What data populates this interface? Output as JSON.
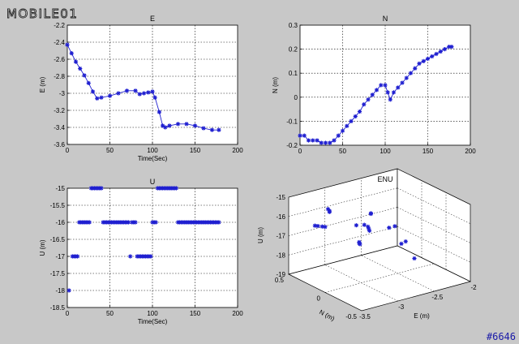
{
  "brand": {
    "logo_text": "MOBILE01"
  },
  "watermark": "#6646",
  "colors": {
    "figure_bg": "#c8c8c8",
    "axes_bg": "#ffffff",
    "marker": "#1f1fd0",
    "grid": "#000000"
  },
  "chart_data": [
    {
      "type": "line",
      "title": "E",
      "xlabel": "Time(Sec)",
      "ylabel": "E (m)",
      "xlim": [
        0,
        200
      ],
      "ylim": [
        -3.6,
        -2.2
      ],
      "xticks": [
        0,
        50,
        100,
        150,
        200
      ],
      "yticks": [
        -3.6,
        -3.4,
        -3.2,
        -3.0,
        -2.8,
        -2.6,
        -2.4,
        -2.2
      ],
      "ytick_labels": [
        "-3.6",
        "-3.4",
        "-3.2",
        "-3",
        "-2.8",
        "-2.6",
        "-2.4",
        "-2.2"
      ],
      "grid": true,
      "marker": "*",
      "x": [
        0,
        5,
        10,
        15,
        20,
        25,
        30,
        35,
        40,
        50,
        60,
        70,
        80,
        85,
        90,
        95,
        100,
        103,
        108,
        112,
        115,
        120,
        130,
        140,
        150,
        160,
        170,
        178
      ],
      "y": [
        -2.43,
        -2.53,
        -2.63,
        -2.71,
        -2.79,
        -2.88,
        -2.98,
        -3.06,
        -3.05,
        -3.03,
        -3.0,
        -2.97,
        -2.97,
        -3.01,
        -3.0,
        -2.99,
        -2.98,
        -3.05,
        -3.22,
        -3.38,
        -3.4,
        -3.38,
        -3.36,
        -3.36,
        -3.38,
        -3.41,
        -3.43,
        -3.43
      ]
    },
    {
      "type": "line",
      "title": "N",
      "xlabel": "",
      "ylabel": "N (m)",
      "xlim": [
        0,
        200
      ],
      "ylim": [
        -0.2,
        0.3
      ],
      "xticks": [
        0,
        50,
        100,
        150,
        200
      ],
      "yticks": [
        -0.2,
        -0.1,
        0,
        0.1,
        0.2,
        0.3
      ],
      "ytick_labels": [
        "-0.2",
        "-0.1",
        "0",
        "0.1",
        "0.2",
        "0.3"
      ],
      "grid": true,
      "marker": "*",
      "x": [
        0,
        5,
        10,
        15,
        20,
        25,
        30,
        35,
        40,
        45,
        50,
        55,
        60,
        65,
        70,
        75,
        80,
        85,
        90,
        95,
        100,
        103,
        106,
        110,
        115,
        120,
        125,
        130,
        135,
        140,
        145,
        150,
        155,
        160,
        165,
        170,
        175,
        178
      ],
      "y": [
        -0.16,
        -0.16,
        -0.18,
        -0.18,
        -0.18,
        -0.19,
        -0.19,
        -0.19,
        -0.18,
        -0.16,
        -0.14,
        -0.12,
        -0.1,
        -0.08,
        -0.06,
        -0.03,
        -0.01,
        0.01,
        0.03,
        0.05,
        0.05,
        0.02,
        -0.01,
        0.02,
        0.04,
        0.06,
        0.08,
        0.1,
        0.12,
        0.14,
        0.15,
        0.16,
        0.17,
        0.18,
        0.19,
        0.2,
        0.21,
        0.21
      ]
    },
    {
      "type": "scatter",
      "title": "U",
      "xlabel": "Time(Sec)",
      "ylabel": "U (m)",
      "xlim": [
        0,
        200
      ],
      "ylim": [
        -18.5,
        -15
      ],
      "xticks": [
        0,
        50,
        100,
        150,
        200
      ],
      "yticks": [
        -18.5,
        -18,
        -17.5,
        -17,
        -16.5,
        -16,
        -15.5,
        -15
      ],
      "ytick_labels": [
        "-18.5",
        "-18",
        "-17.5",
        "-17",
        "-16.5",
        "-16",
        "-15.5",
        "-15"
      ],
      "grid": true,
      "marker": "*",
      "x": [
        2,
        6,
        8,
        10,
        12,
        14,
        16,
        18,
        20,
        22,
        24,
        26,
        28,
        30,
        32,
        34,
        36,
        38,
        40,
        42,
        44,
        46,
        48,
        50,
        52,
        54,
        56,
        58,
        60,
        62,
        64,
        66,
        68,
        70,
        72,
        74,
        76,
        78,
        80,
        82,
        84,
        86,
        88,
        90,
        92,
        94,
        96,
        98,
        100,
        102,
        104,
        106,
        108,
        110,
        112,
        114,
        116,
        118,
        120,
        122,
        124,
        126,
        128,
        130,
        132,
        134,
        136,
        138,
        140,
        142,
        144,
        146,
        148,
        150,
        152,
        154,
        156,
        158,
        160,
        162,
        164,
        166,
        168,
        170,
        172,
        174,
        176,
        178
      ],
      "y": [
        -18,
        -17,
        -17,
        -17,
        -17,
        -16,
        -16,
        -16,
        -16,
        -16,
        -16,
        -16,
        -15,
        -15,
        -15,
        -15,
        -15,
        -15,
        -15,
        -16,
        -16,
        -16,
        -16,
        -16,
        -16,
        -16,
        -16,
        -16,
        -16,
        -16,
        -16,
        -16,
        -16,
        -16,
        -16,
        -17,
        -16,
        -16,
        -16,
        -17,
        -17,
        -17,
        -17,
        -17,
        -17,
        -17,
        -17,
        -17,
        -16,
        -16,
        -16,
        -15,
        -15,
        -15,
        -15,
        -15,
        -15,
        -15,
        -15,
        -15,
        -15,
        -15,
        -15,
        -16,
        -16,
        -16,
        -16,
        -16,
        -16,
        -16,
        -16,
        -16,
        -16,
        -16,
        -16,
        -16,
        -16,
        -16,
        -16,
        -16,
        -16,
        -16,
        -16,
        -16,
        -16,
        -16,
        -16,
        -16
      ]
    },
    {
      "type": "scatter",
      "title": "ENU",
      "xlabel": "E (m)",
      "ylabel": "U (m)",
      "zlabel": "N (m)",
      "projection": "3d",
      "xlim": [
        -3.5,
        -2
      ],
      "ylim": [
        -0.5,
        0.5
      ],
      "zlim": [
        -19,
        -15
      ],
      "xticks": [
        -3.5,
        -3,
        -2.5,
        -2
      ],
      "xtick_labels": [
        "-3.5",
        "-3",
        "-2.5",
        "-2"
      ],
      "nticks": [
        -0.5,
        0,
        0.5
      ],
      "ntick_labels": [
        "-0.5",
        "0",
        "0.5"
      ],
      "zticks": [
        -19,
        -18,
        -17,
        -16,
        -15
      ],
      "ztick_labels": [
        "-19",
        "-18",
        "-17",
        "-16",
        "-15"
      ],
      "grid": true,
      "marker": "*",
      "points": [
        [
          -2.43,
          -0.16,
          -18
        ],
        [
          -2.55,
          -0.16,
          -17
        ],
        [
          -2.63,
          -0.18,
          -17
        ],
        [
          -2.72,
          -0.18,
          -16
        ],
        [
          -2.8,
          -0.18,
          -16
        ],
        [
          -3.06,
          -0.19,
          -15
        ],
        [
          -3.05,
          -0.18,
          -15
        ],
        [
          -3.03,
          -0.14,
          -16
        ],
        [
          -3.0,
          -0.1,
          -16
        ],
        [
          -2.97,
          -0.06,
          -16
        ],
        [
          -2.97,
          -0.01,
          -16
        ],
        [
          -3.01,
          0.01,
          -17
        ],
        [
          -3.0,
          0.03,
          -17
        ],
        [
          -2.98,
          0.05,
          -17
        ],
        [
          -3.05,
          0.02,
          -16
        ],
        [
          -3.4,
          0.04,
          -15
        ],
        [
          -3.38,
          0.06,
          -15
        ],
        [
          -3.36,
          0.1,
          -15
        ],
        [
          -3.36,
          0.14,
          -16
        ],
        [
          -3.38,
          0.16,
          -16
        ],
        [
          -3.41,
          0.19,
          -16
        ],
        [
          -3.43,
          0.21,
          -16
        ]
      ]
    }
  ]
}
